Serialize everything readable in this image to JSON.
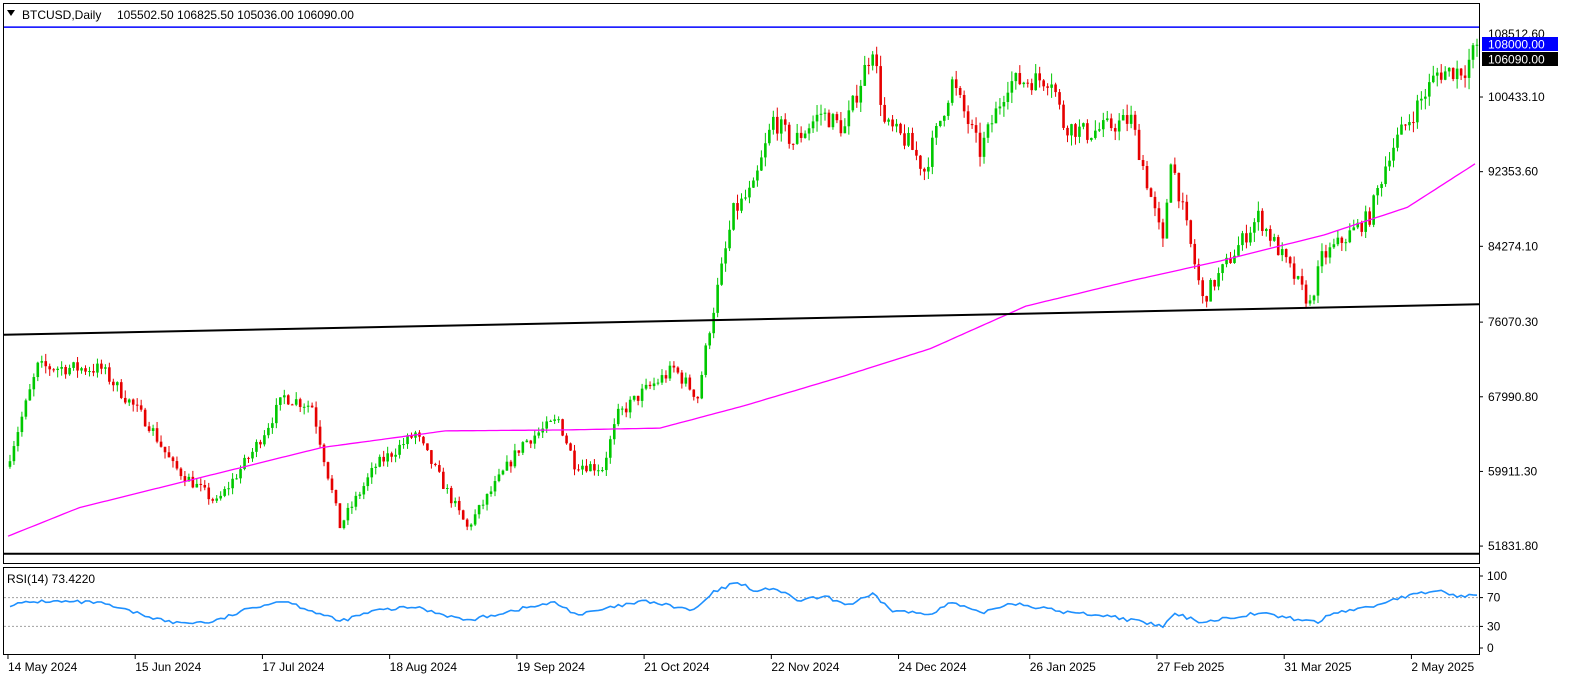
{
  "header": {
    "symbol": "BTCUSD,Daily",
    "ohlc": "105502.50 106825.50 105036.00 106090.00"
  },
  "rsi_header": "RSI(14) 73.4220",
  "price_tags": {
    "resistance": "108000.00",
    "hidden_top": "108512.60",
    "current": "106090.00"
  },
  "colors": {
    "bull": "#00c800",
    "bear": "#e60000",
    "ma": "#ff00ff",
    "rsi": "#1e90ff",
    "resistance_line": "#0000ff",
    "trend_line": "#000000",
    "current_tag_bg": "#000000",
    "resistance_tag_bg": "#0000ff"
  },
  "chart_data": [
    {
      "type": "candlestick",
      "y_axis_ticks": [
        "108512.60",
        "100433.10",
        "92353.60",
        "84274.10",
        "76070.30",
        "67990.80",
        "59911.30",
        "51831.80"
      ],
      "x_axis_ticks": [
        "14 May 2024",
        "15 Jun 2024",
        "17 Jul 2024",
        "18 Aug 2024",
        "19 Sep 2024",
        "21 Oct 2024",
        "22 Nov 2024",
        "24 Dec 2024",
        "26 Jan 2025",
        "27 Feb 2025",
        "31 Mar 2025",
        "2 May 2025"
      ],
      "ylim": [
        50000,
        110500
      ],
      "anchor_closes": [
        {
          "date": "2024-05-14",
          "close": 61700
        },
        {
          "date": "2024-05-21",
          "close": 71200
        },
        {
          "date": "2024-06-06",
          "close": 71000
        },
        {
          "date": "2024-06-18",
          "close": 65000
        },
        {
          "date": "2024-06-24",
          "close": 60500
        },
        {
          "date": "2024-07-05",
          "close": 56500
        },
        {
          "date": "2024-07-14",
          "close": 62000
        },
        {
          "date": "2024-07-22",
          "close": 68000
        },
        {
          "date": "2024-07-29",
          "close": 67000
        },
        {
          "date": "2024-08-05",
          "close": 54000
        },
        {
          "date": "2024-08-14",
          "close": 60500
        },
        {
          "date": "2024-08-24",
          "close": 64000
        },
        {
          "date": "2024-09-06",
          "close": 53800
        },
        {
          "date": "2024-09-20",
          "close": 63000
        },
        {
          "date": "2024-09-29",
          "close": 65500
        },
        {
          "date": "2024-10-03",
          "close": 60800
        },
        {
          "date": "2024-10-10",
          "close": 60300
        },
        {
          "date": "2024-10-14",
          "close": 66000
        },
        {
          "date": "2024-10-20",
          "close": 68400
        },
        {
          "date": "2024-10-28",
          "close": 71000
        },
        {
          "date": "2024-11-03",
          "close": 68000
        },
        {
          "date": "2024-11-06",
          "close": 75500
        },
        {
          "date": "2024-11-12",
          "close": 88000
        },
        {
          "date": "2024-11-17",
          "close": 90500
        },
        {
          "date": "2024-11-22",
          "close": 98000
        },
        {
          "date": "2024-11-27",
          "close": 95500
        },
        {
          "date": "2024-12-04",
          "close": 98700
        },
        {
          "date": "2024-12-10",
          "close": 97000
        },
        {
          "date": "2024-12-17",
          "close": 106000
        },
        {
          "date": "2024-12-20",
          "close": 97500
        },
        {
          "date": "2024-12-26",
          "close": 95500
        },
        {
          "date": "2024-12-30",
          "close": 92500
        },
        {
          "date": "2025-01-06",
          "close": 102000
        },
        {
          "date": "2025-01-13",
          "close": 94500
        },
        {
          "date": "2025-01-20",
          "close": 102000
        },
        {
          "date": "2025-01-31",
          "close": 102500
        },
        {
          "date": "2025-02-03",
          "close": 97500
        },
        {
          "date": "2025-02-09",
          "close": 96500
        },
        {
          "date": "2025-02-20",
          "close": 98000
        },
        {
          "date": "2025-02-28",
          "close": 84500
        },
        {
          "date": "2025-03-02",
          "close": 94000
        },
        {
          "date": "2025-03-10",
          "close": 78500
        },
        {
          "date": "2025-03-24",
          "close": 87500
        },
        {
          "date": "2025-03-31",
          "close": 82500
        },
        {
          "date": "2025-04-06",
          "close": 78000
        },
        {
          "date": "2025-04-09",
          "close": 83000
        },
        {
          "date": "2025-04-21",
          "close": 87500
        },
        {
          "date": "2025-04-26",
          "close": 94500
        },
        {
          "date": "2025-05-08",
          "close": 103000
        },
        {
          "date": "2025-05-15",
          "close": 103500
        },
        {
          "date": "2025-05-18",
          "close": 106090
        }
      ],
      "moving_average": [
        {
          "date": "2024-05-14",
          "value": 52900
        },
        {
          "date": "2024-06-01",
          "value": 56000
        },
        {
          "date": "2024-07-01",
          "value": 59200
        },
        {
          "date": "2024-08-01",
          "value": 62500
        },
        {
          "date": "2024-09-01",
          "value": 64300
        },
        {
          "date": "2024-10-01",
          "value": 64400
        },
        {
          "date": "2024-10-25",
          "value": 64600
        },
        {
          "date": "2024-11-15",
          "value": 67000
        },
        {
          "date": "2024-12-10",
          "value": 70200
        },
        {
          "date": "2025-01-01",
          "value": 73200
        },
        {
          "date": "2025-01-25",
          "value": 77800
        },
        {
          "date": "2025-02-20",
          "value": 80500
        },
        {
          "date": "2025-03-15",
          "value": 82700
        },
        {
          "date": "2025-04-10",
          "value": 85500
        },
        {
          "date": "2025-05-01",
          "value": 88500
        },
        {
          "date": "2025-05-18",
          "value": 93200
        }
      ],
      "horizontal_lines": [
        {
          "name": "resistance",
          "value": 108000
        },
        {
          "name": "support",
          "value": 51000
        }
      ],
      "trend_line": [
        {
          "date": "2024-05-14",
          "value": 74700
        },
        {
          "date": "2025-05-18",
          "value": 78000
        }
      ]
    },
    {
      "type": "line",
      "name": "RSI(14)",
      "ylim": [
        0,
        100
      ],
      "y_axis_ticks": [
        "100",
        "70",
        "30",
        "0"
      ],
      "levels": [
        70,
        30
      ],
      "last_value": 73.422,
      "anchors": [
        {
          "date": "2024-05-14",
          "value": 60
        },
        {
          "date": "2024-05-22",
          "value": 65
        },
        {
          "date": "2024-06-05",
          "value": 63
        },
        {
          "date": "2024-06-24",
          "value": 35
        },
        {
          "date": "2024-07-04",
          "value": 36
        },
        {
          "date": "2024-07-15",
          "value": 58
        },
        {
          "date": "2024-07-22",
          "value": 66
        },
        {
          "date": "2024-08-05",
          "value": 37
        },
        {
          "date": "2024-08-14",
          "value": 52
        },
        {
          "date": "2024-08-24",
          "value": 57
        },
        {
          "date": "2024-09-06",
          "value": 38
        },
        {
          "date": "2024-09-20",
          "value": 55
        },
        {
          "date": "2024-09-28",
          "value": 63
        },
        {
          "date": "2024-10-04",
          "value": 46
        },
        {
          "date": "2024-10-14",
          "value": 58
        },
        {
          "date": "2024-10-21",
          "value": 65
        },
        {
          "date": "2024-11-02",
          "value": 52
        },
        {
          "date": "2024-11-07",
          "value": 77
        },
        {
          "date": "2024-11-13",
          "value": 92
        },
        {
          "date": "2024-11-18",
          "value": 78
        },
        {
          "date": "2024-11-22",
          "value": 84
        },
        {
          "date": "2024-11-28",
          "value": 66
        },
        {
          "date": "2024-12-05",
          "value": 71
        },
        {
          "date": "2024-12-11",
          "value": 60
        },
        {
          "date": "2024-12-17",
          "value": 74
        },
        {
          "date": "2024-12-22",
          "value": 52
        },
        {
          "date": "2024-12-31",
          "value": 47
        },
        {
          "date": "2025-01-06",
          "value": 63
        },
        {
          "date": "2025-01-13",
          "value": 48
        },
        {
          "date": "2025-01-21",
          "value": 63
        },
        {
          "date": "2025-02-03",
          "value": 50
        },
        {
          "date": "2025-02-14",
          "value": 45
        },
        {
          "date": "2025-02-28",
          "value": 30
        },
        {
          "date": "2025-03-03",
          "value": 47
        },
        {
          "date": "2025-03-10",
          "value": 36
        },
        {
          "date": "2025-03-24",
          "value": 49
        },
        {
          "date": "2025-03-31",
          "value": 42
        },
        {
          "date": "2025-04-08",
          "value": 36
        },
        {
          "date": "2025-04-12",
          "value": 49
        },
        {
          "date": "2025-04-22",
          "value": 58
        },
        {
          "date": "2025-04-27",
          "value": 68
        },
        {
          "date": "2025-05-08",
          "value": 80
        },
        {
          "date": "2025-05-14",
          "value": 71
        },
        {
          "date": "2025-05-18",
          "value": 73.4
        }
      ]
    }
  ]
}
